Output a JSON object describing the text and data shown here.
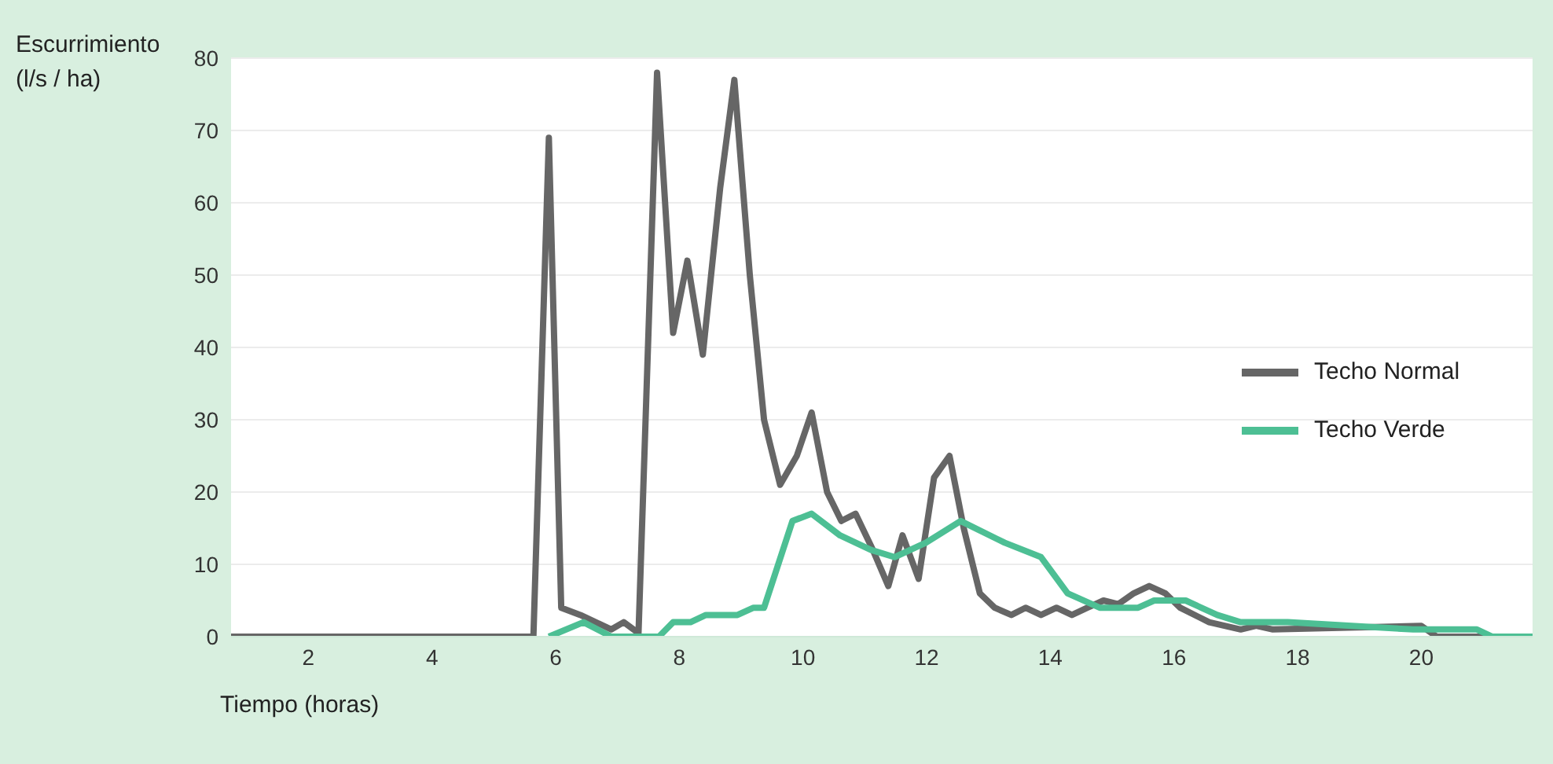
{
  "chart_data": {
    "type": "line",
    "xlabel": "Tiempo (horas)",
    "ylabel": "Escurrimiento (l/s / ha)",
    "xlim": [
      0.75,
      21.8
    ],
    "xticks": [
      2,
      4,
      6,
      8,
      10,
      12,
      14,
      16,
      18,
      20
    ],
    "ylim": [
      0,
      80
    ],
    "yticks": [
      0,
      10,
      20,
      30,
      40,
      50,
      60,
      70,
      80
    ],
    "grid": "y",
    "legend": "right",
    "marker": "none",
    "line_style": "solid",
    "series": [
      {
        "name": "Techo Normal",
        "color": "#666666",
        "x": [
          0.75,
          5.64,
          5.89,
          6.09,
          6.4,
          6.9,
          7.1,
          7.34,
          7.64,
          7.9,
          8.13,
          8.38,
          8.66,
          8.89,
          9.14,
          9.37,
          9.63,
          9.9,
          10.14,
          10.39,
          10.62,
          10.85,
          11.13,
          11.38,
          11.61,
          11.87,
          12.12,
          12.37,
          12.6,
          12.86,
          13.1,
          13.37,
          13.6,
          13.85,
          14.1,
          14.35,
          14.6,
          14.86,
          15.1,
          15.35,
          15.6,
          15.86,
          16.1,
          16.57,
          17.08,
          17.33,
          17.6,
          20.0,
          20.25,
          20.9,
          21.8
        ],
        "values": [
          0,
          0,
          69,
          4,
          3,
          1,
          2,
          0.5,
          78,
          42,
          52,
          39,
          62,
          77,
          50,
          30,
          21,
          25,
          31,
          20,
          16,
          17,
          12,
          7,
          14,
          8,
          22,
          25,
          15,
          6,
          4,
          3,
          4,
          3,
          4,
          3,
          4,
          5,
          4.5,
          6,
          7,
          6,
          4,
          2,
          1,
          1.5,
          1,
          1.5,
          0,
          0,
          0
        ]
      },
      {
        "name": "Techo Verde",
        "color": "#4dbf94",
        "x": [
          5.89,
          6.45,
          6.9,
          7.67,
          7.9,
          8.18,
          8.43,
          8.94,
          9.2,
          9.37,
          9.83,
          10.14,
          10.6,
          11.1,
          11.48,
          11.99,
          12.55,
          13.26,
          13.85,
          14.28,
          14.8,
          15.42,
          15.68,
          16.19,
          16.7,
          17.08,
          17.84,
          19.87,
          20.9,
          21.15,
          21.8
        ],
        "values": [
          0,
          2,
          0,
          0,
          2,
          2,
          3,
          3,
          4,
          4,
          16,
          17,
          14,
          12,
          11,
          13,
          16,
          13,
          11,
          6,
          4,
          4,
          5,
          5,
          3,
          2,
          2,
          1,
          1,
          0,
          0
        ]
      }
    ]
  }
}
